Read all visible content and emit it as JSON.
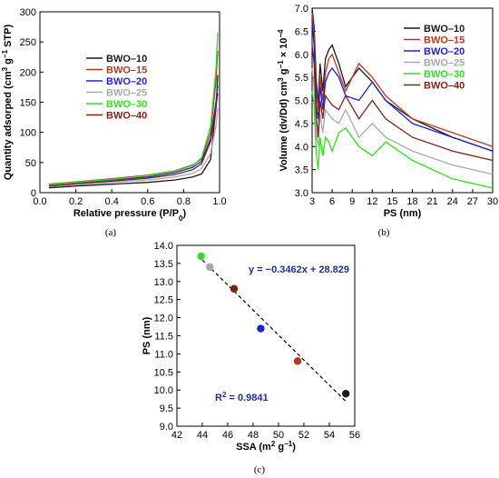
{
  "series_colors": {
    "BWO-10": "#1a1a1a",
    "BWO-15": "#b33a22",
    "BWO-20": "#2222cc",
    "BWO-25": "#a9a9a9",
    "BWO-30": "#33dd22",
    "BWO-40": "#7a2416"
  },
  "chart_data": [
    {
      "panel": "(a)",
      "type": "line",
      "xlabel": "Relative pressure (P/P0)",
      "ylabel": "Quantity adsorped (cm3 g−1 STP)",
      "xlim": [
        0.0,
        1.0
      ],
      "ylim": [
        0,
        300
      ],
      "xticks": [
        "0.0",
        "0.2",
        "0.4",
        "0.6",
        "0.8",
        "1.0"
      ],
      "yticks": [
        "0",
        "50",
        "100",
        "150",
        "200",
        "250",
        "300"
      ],
      "legend_position": "center",
      "series": [
        {
          "name": "BWO–10",
          "x": [
            0.05,
            0.2,
            0.4,
            0.6,
            0.75,
            0.85,
            0.9,
            0.95,
            0.98,
            0.99
          ],
          "y": [
            8,
            11,
            14,
            17,
            21,
            26,
            31,
            55,
            140,
            195
          ]
        },
        {
          "name": "BWO–15",
          "x": [
            0.05,
            0.2,
            0.4,
            0.6,
            0.75,
            0.85,
            0.9,
            0.95,
            0.98,
            0.99
          ],
          "y": [
            14,
            18,
            23,
            29,
            36,
            46,
            56,
            100,
            185,
            235
          ]
        },
        {
          "name": "BWO–20",
          "x": [
            0.05,
            0.2,
            0.4,
            0.6,
            0.75,
            0.85,
            0.9,
            0.95,
            0.98,
            0.99
          ],
          "y": [
            12,
            16,
            21,
            26,
            33,
            42,
            52,
            90,
            150,
            178
          ]
        },
        {
          "name": "BWO–25",
          "x": [
            0.05,
            0.2,
            0.4,
            0.6,
            0.75,
            0.85,
            0.9,
            0.95,
            0.98,
            0.99
          ],
          "y": [
            10,
            13,
            17,
            21,
            26,
            32,
            40,
            65,
            110,
            140
          ]
        },
        {
          "name": "BWO–30",
          "x": [
            0.05,
            0.2,
            0.4,
            0.6,
            0.75,
            0.85,
            0.9,
            0.95,
            0.98,
            0.99
          ],
          "y": [
            13,
            17,
            22,
            28,
            35,
            45,
            58,
            110,
            205,
            265
          ]
        },
        {
          "name": "BWO–40",
          "x": [
            0.05,
            0.2,
            0.4,
            0.6,
            0.75,
            0.85,
            0.9,
            0.95,
            0.98,
            0.99
          ],
          "y": [
            11,
            15,
            19,
            24,
            30,
            38,
            48,
            85,
            140,
            165
          ]
        }
      ]
    },
    {
      "panel": "(b)",
      "type": "line",
      "xlabel": "PS (nm)",
      "ylabel": "Volume (dv/Dd) cm3 g−1 × 10−4",
      "xlim": [
        3,
        30
      ],
      "ylim": [
        3.0,
        7.0
      ],
      "xticks": [
        "3",
        "6",
        "9",
        "12",
        "15",
        "18",
        "21",
        "24",
        "27",
        "30"
      ],
      "yticks": [
        "3.0",
        "3.5",
        "4.0",
        "4.5",
        "5.0",
        "5.5",
        "6.0",
        "6.5",
        "7.0"
      ],
      "legend_position": "top-right",
      "series": [
        {
          "name": "BWO–10",
          "x": [
            3,
            3.3,
            3.6,
            3.9,
            4.2,
            4.6,
            5,
            5.5,
            6,
            7,
            8,
            10,
            12,
            14,
            18,
            24,
            30
          ],
          "y": [
            7.0,
            6.6,
            5.5,
            4.9,
            5.8,
            5.2,
            5.9,
            6.1,
            6.2,
            5.8,
            5.3,
            5.7,
            5.4,
            5.0,
            4.6,
            4.2,
            3.9
          ]
        },
        {
          "name": "BWO–15",
          "x": [
            3,
            3.3,
            3.6,
            3.9,
            4.2,
            4.6,
            5,
            5.5,
            6,
            7,
            8,
            10,
            12,
            14,
            18,
            24,
            30
          ],
          "y": [
            6.9,
            6.4,
            5.2,
            4.8,
            5.5,
            5.0,
            5.6,
            5.9,
            6.0,
            5.6,
            5.2,
            5.8,
            5.5,
            5.1,
            4.6,
            4.3,
            4.0
          ]
        },
        {
          "name": "BWO–20",
          "x": [
            3,
            3.3,
            3.6,
            3.9,
            4.2,
            4.6,
            5,
            5.5,
            6,
            7,
            8,
            10,
            12,
            14,
            18,
            24,
            30
          ],
          "y": [
            6.7,
            6.2,
            4.9,
            4.6,
            5.3,
            4.8,
            5.4,
            5.6,
            5.7,
            5.5,
            5.1,
            5.0,
            5.4,
            5.0,
            4.5,
            4.2,
            3.9
          ]
        },
        {
          "name": "BWO–25",
          "x": [
            3,
            3.3,
            3.6,
            3.9,
            4.2,
            4.6,
            5,
            5.5,
            6,
            7,
            8,
            10,
            12,
            14,
            18,
            24,
            30
          ],
          "y": [
            5.7,
            5.3,
            4.3,
            4.0,
            4.7,
            4.3,
            4.8,
            4.7,
            4.6,
            4.5,
            4.8,
            4.2,
            4.5,
            4.2,
            3.9,
            3.6,
            3.4
          ]
        },
        {
          "name": "BWO–30",
          "x": [
            3,
            3.3,
            3.6,
            3.9,
            4.2,
            4.6,
            5,
            5.5,
            6,
            7,
            8,
            10,
            12,
            14,
            18,
            24,
            30
          ],
          "y": [
            5.2,
            4.9,
            3.9,
            3.5,
            4.2,
            3.8,
            4.2,
            4.1,
            3.9,
            4.3,
            4.4,
            4.0,
            3.8,
            4.1,
            3.7,
            3.3,
            3.1
          ]
        },
        {
          "name": "BWO–40",
          "x": [
            3,
            3.3,
            3.6,
            3.9,
            4.2,
            4.6,
            5,
            5.5,
            6,
            7,
            8,
            10,
            12,
            14,
            18,
            24,
            30
          ],
          "y": [
            6.2,
            5.8,
            4.7,
            4.2,
            5.0,
            4.6,
            5.1,
            5.0,
            4.9,
            4.8,
            5.1,
            4.6,
            5.0,
            4.6,
            4.2,
            3.9,
            3.7
          ]
        }
      ]
    },
    {
      "panel": "(c)",
      "type": "scatter",
      "xlabel": "SSA (m2 g−1)",
      "ylabel": "PS (nm)",
      "xlim": [
        42,
        56
      ],
      "ylim": [
        9.0,
        14.0
      ],
      "xticks": [
        "42",
        "44",
        "46",
        "48",
        "50",
        "52",
        "54",
        "56"
      ],
      "yticks": [
        "9.0",
        "9.5",
        "10.0",
        "10.5",
        "11.0",
        "11.5",
        "12.0",
        "12.5",
        "13.0",
        "13.5",
        "14.0"
      ],
      "points": [
        {
          "label": "BWO-30",
          "x": 43.9,
          "y": 13.7
        },
        {
          "label": "BWO-25",
          "x": 44.6,
          "y": 13.4
        },
        {
          "label": "BWO-40",
          "x": 46.5,
          "y": 12.8
        },
        {
          "label": "BWO-20",
          "x": 48.6,
          "y": 11.7
        },
        {
          "label": "BWO-15",
          "x": 51.5,
          "y": 10.8
        },
        {
          "label": "BWO-10",
          "x": 55.3,
          "y": 9.9
        }
      ],
      "fit": {
        "slope": -0.3462,
        "intercept": 28.829,
        "x_range": [
          44,
          55.3
        ]
      },
      "equation": "y = −0.3462x + 28.829",
      "r2": "R2 = 0.9841"
    }
  ]
}
